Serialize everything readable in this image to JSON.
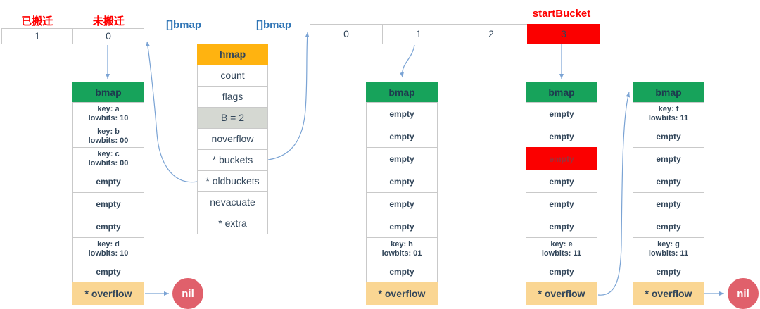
{
  "colors": {
    "green": "#17A35B",
    "orange": "#FFB310",
    "tan": "#FAD693",
    "red": "#FB0000",
    "red_label": "#FF0000",
    "red_cell_text": "#9E2F38",
    "nil_pink": "#E0606B",
    "gray": "#D5D8D2",
    "border": "#C9C9C9",
    "text": "#32465A",
    "blue_label": "#2E74B5",
    "arrow": "#7AA3D4"
  },
  "migration_table": {
    "headers": [
      "已搬迁",
      "未搬迁"
    ],
    "values": [
      "1",
      "0"
    ]
  },
  "slice_labels": {
    "left": "[]bmap",
    "right": "[]bmap"
  },
  "start_bucket_label": "startBucket",
  "bucket_array": {
    "cells": [
      "0",
      "1",
      "2",
      "3"
    ],
    "highlight_index": 3
  },
  "hmap": {
    "title": "hmap",
    "fields": [
      {
        "label": "count"
      },
      {
        "label": "flags"
      },
      {
        "label": "B = 2",
        "highlight": true
      },
      {
        "label": "noverflow"
      },
      {
        "label": "* buckets"
      },
      {
        "label": "* oldbuckets"
      },
      {
        "label": "nevacuate"
      },
      {
        "label": "* extra"
      }
    ]
  },
  "buckets": [
    {
      "title": "bmap",
      "slots": [
        {
          "lines": [
            "key: a",
            "lowbits: 10"
          ]
        },
        {
          "lines": [
            "key: b",
            "lowbits: 00"
          ]
        },
        {
          "lines": [
            "key: c",
            "lowbits: 00"
          ]
        },
        {
          "lines": [
            "empty"
          ]
        },
        {
          "lines": [
            "empty"
          ]
        },
        {
          "lines": [
            "empty"
          ]
        },
        {
          "lines": [
            "key: d",
            "lowbits: 10"
          ]
        },
        {
          "lines": [
            "empty"
          ]
        }
      ],
      "overflow_label": "* overflow"
    },
    {
      "title": "bmap",
      "slots": [
        {
          "lines": [
            "empty"
          ]
        },
        {
          "lines": [
            "empty"
          ]
        },
        {
          "lines": [
            "empty"
          ]
        },
        {
          "lines": [
            "empty"
          ]
        },
        {
          "lines": [
            "empty"
          ]
        },
        {
          "lines": [
            "empty"
          ]
        },
        {
          "lines": [
            "key: h",
            "lowbits: 01"
          ]
        },
        {
          "lines": [
            "empty"
          ]
        }
      ],
      "overflow_label": "* overflow"
    },
    {
      "title": "bmap",
      "slots": [
        {
          "lines": [
            "empty"
          ]
        },
        {
          "lines": [
            "empty"
          ]
        },
        {
          "lines": [
            "empty"
          ],
          "highlight": true
        },
        {
          "lines": [
            "empty"
          ]
        },
        {
          "lines": [
            "empty"
          ]
        },
        {
          "lines": [
            "empty"
          ]
        },
        {
          "lines": [
            "key: e",
            "lowbits: 11"
          ]
        },
        {
          "lines": [
            "empty"
          ]
        }
      ],
      "overflow_label": "* overflow"
    },
    {
      "title": "bmap",
      "slots": [
        {
          "lines": [
            "key: f",
            "lowbits: 11"
          ]
        },
        {
          "lines": [
            "empty"
          ]
        },
        {
          "lines": [
            "empty"
          ]
        },
        {
          "lines": [
            "empty"
          ]
        },
        {
          "lines": [
            "empty"
          ]
        },
        {
          "lines": [
            "empty"
          ]
        },
        {
          "lines": [
            "key: g",
            "lowbits: 11"
          ]
        },
        {
          "lines": [
            "empty"
          ]
        }
      ],
      "overflow_label": "* overflow"
    }
  ],
  "nil_nodes": [
    {
      "label": "nil"
    },
    {
      "label": "nil"
    }
  ]
}
